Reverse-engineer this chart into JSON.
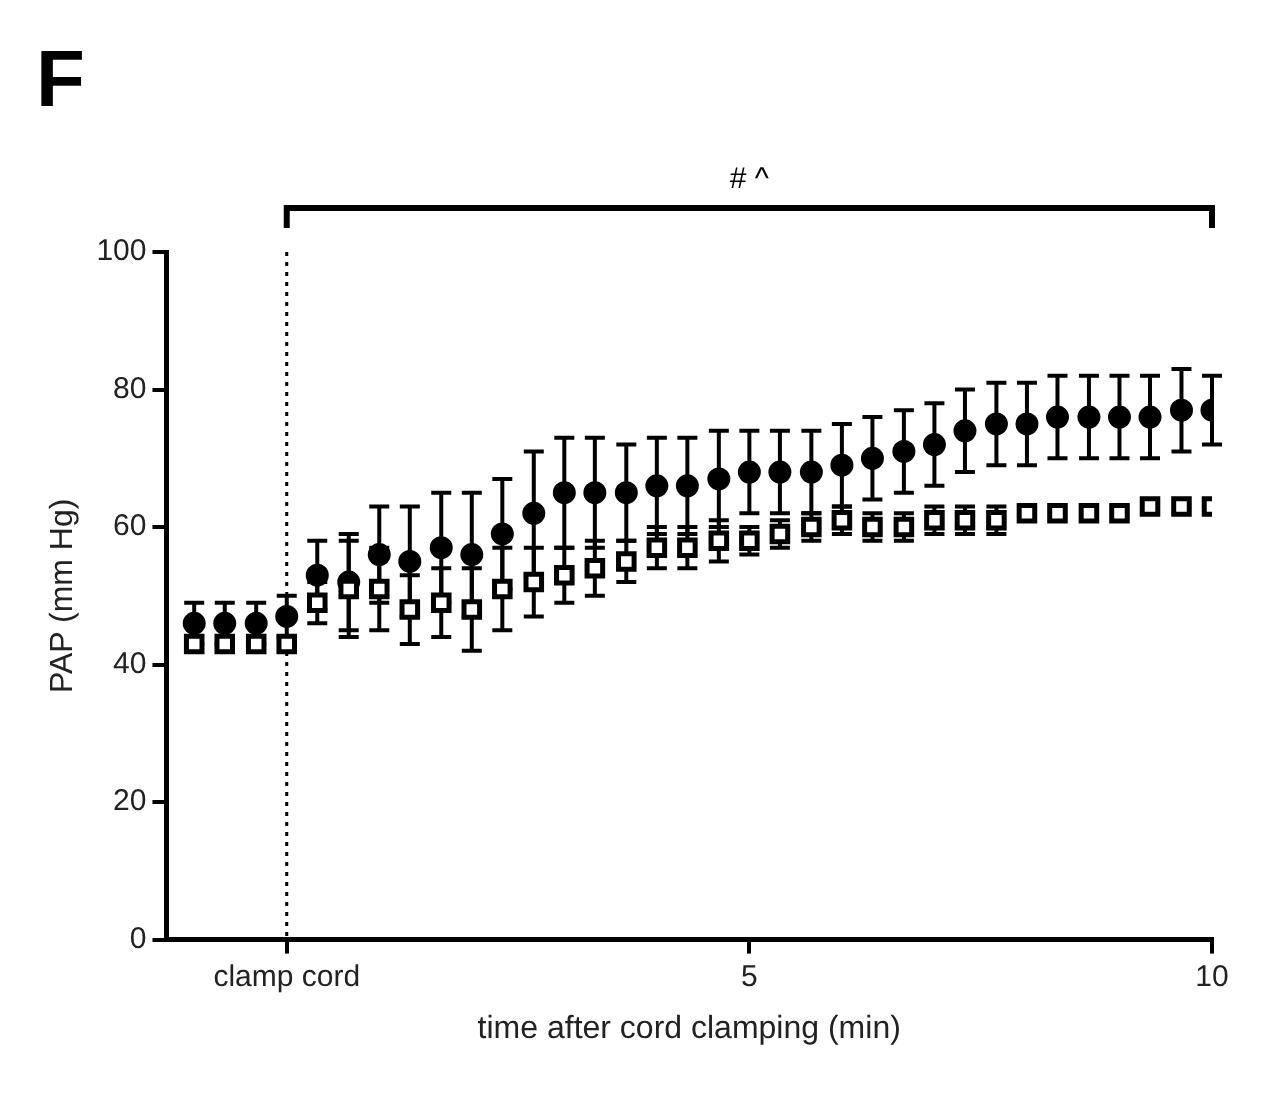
{
  "chart_data": {
    "type": "scatter",
    "title": "F",
    "xlabel": "time after cord clamping (min)",
    "ylabel": "PAP (mm Hg)",
    "annotations": [
      "# ^"
    ],
    "x": [
      -1,
      -0.67,
      -0.33,
      0,
      0.33,
      0.67,
      1,
      1.33,
      1.67,
      2,
      2.33,
      2.67,
      3,
      3.33,
      3.67,
      4,
      4.33,
      4.67,
      5,
      5.33,
      5.67,
      6,
      6.33,
      6.67,
      7,
      7.33,
      7.67,
      8,
      8.33,
      8.67,
      9,
      9.33,
      9.67,
      10
    ],
    "series": [
      {
        "color": "#000000",
        "marker": "circle",
        "values": [
          46,
          46,
          46,
          47,
          53,
          52,
          56,
          55,
          57,
          56,
          59,
          62,
          65,
          65,
          65,
          66,
          66,
          67,
          68,
          68,
          68,
          69,
          70,
          71,
          72,
          74,
          75,
          75,
          76,
          76,
          76,
          76,
          77,
          77
        ],
        "errors": [
          3,
          3,
          3,
          3,
          5,
          7,
          7,
          8,
          8,
          9,
          8,
          9,
          8,
          8,
          7,
          7,
          7,
          7,
          6,
          6,
          6,
          6,
          6,
          6,
          6,
          6,
          6,
          6,
          6,
          6,
          6,
          6,
          6,
          5
        ]
      },
      {
        "color": "#000000",
        "marker": "square",
        "values": [
          43,
          43,
          43,
          43,
          49,
          51,
          51,
          48,
          49,
          48,
          51,
          52,
          53,
          54,
          55,
          57,
          57,
          58,
          58,
          59,
          60,
          61,
          60,
          60,
          61,
          61,
          61,
          62,
          62,
          62,
          62,
          63,
          63,
          63
        ],
        "errors": [
          null,
          null,
          null,
          null,
          3,
          7,
          6,
          5,
          5,
          6,
          6,
          5,
          4,
          4,
          3,
          3,
          3,
          3,
          2,
          2,
          2,
          2,
          2,
          2,
          2,
          2,
          2,
          null,
          null,
          null,
          null,
          null,
          null,
          null
        ]
      }
    ],
    "xlim": [
      -1.3,
      10
    ],
    "xticks": [
      {
        "value": 0,
        "label": "clamp cord"
      },
      5,
      10
    ],
    "ylim": [
      0,
      100
    ],
    "yticks": [
      0,
      20,
      40,
      60,
      80,
      100
    ],
    "ref_lines": [
      {
        "axis": "x",
        "value": 0,
        "line_style": "dotted"
      }
    ],
    "grid": false,
    "legend": false
  }
}
